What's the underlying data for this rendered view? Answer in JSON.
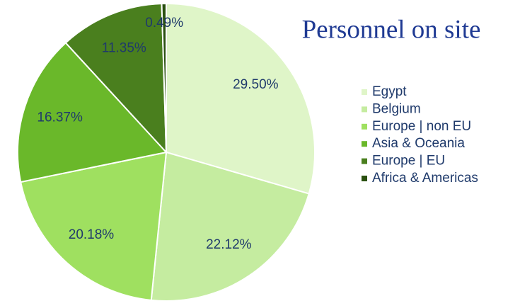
{
  "chart_data": {
    "type": "pie",
    "title": "Personnel on site",
    "categories": [
      "Egypt",
      "Belgium",
      "Europe | non EU",
      "Asia & Oceania",
      "Europe | EU",
      "Africa & Americas"
    ],
    "values": [
      29.5,
      22.12,
      20.18,
      16.37,
      11.35,
      0.49
    ],
    "value_labels": [
      "29.50%",
      "22.12%",
      "20.18%",
      "16.37%",
      "11.35%",
      "0.49%"
    ],
    "colors": [
      "#dff5c8",
      "#c5eca0",
      "#9fe060",
      "#6ab82a",
      "#4a7f1e",
      "#2a5010"
    ],
    "legend": "right"
  }
}
